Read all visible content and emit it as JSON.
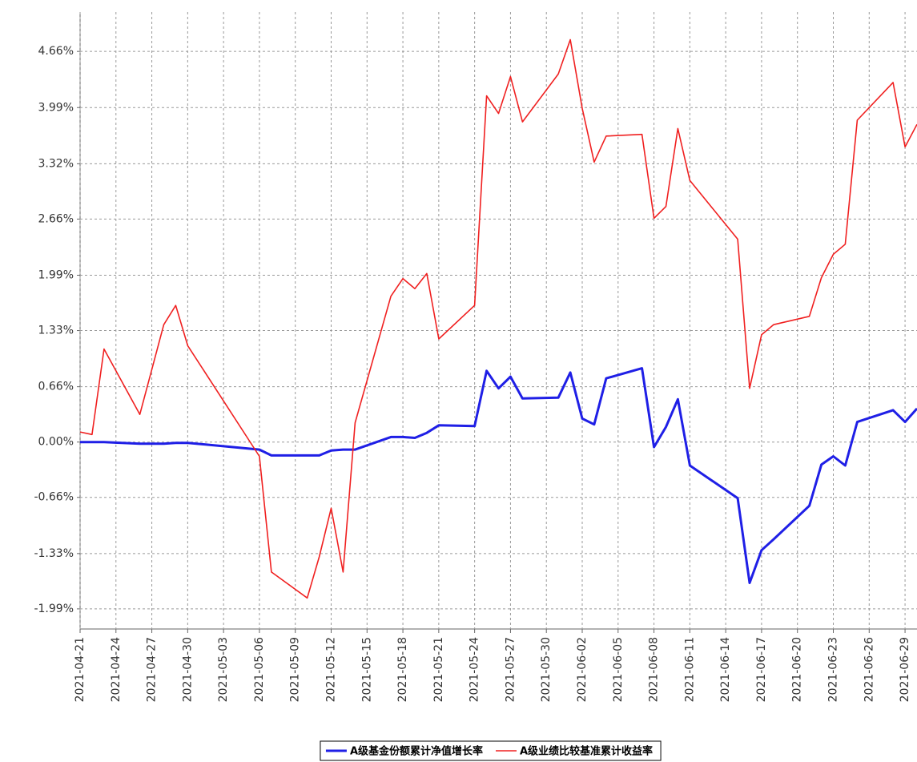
{
  "chart_data": {
    "type": "line",
    "x": [
      "2021-04-21",
      "2021-04-22",
      "2021-04-23",
      "2021-04-26",
      "2021-04-28",
      "2021-04-29",
      "2021-04-30",
      "2021-05-06",
      "2021-05-07",
      "2021-05-10",
      "2021-05-11",
      "2021-05-12",
      "2021-05-13",
      "2021-05-14",
      "2021-05-17",
      "2021-05-18",
      "2021-05-19",
      "2021-05-20",
      "2021-05-21",
      "2021-05-24",
      "2021-05-25",
      "2021-05-26",
      "2021-05-27",
      "2021-05-28",
      "2021-05-31",
      "2021-06-01",
      "2021-06-02",
      "2021-06-03",
      "2021-06-04",
      "2021-06-07",
      "2021-06-08",
      "2021-06-09",
      "2021-06-10",
      "2021-06-11",
      "2021-06-15",
      "2021-06-16",
      "2021-06-17",
      "2021-06-18",
      "2021-06-21",
      "2021-06-22",
      "2021-06-23",
      "2021-06-24",
      "2021-06-25",
      "2021-06-28",
      "2021-06-29",
      "2021-06-30"
    ],
    "series": [
      {
        "name": "A级基金份额累计净值增长率",
        "color": "#1f1fe6",
        "values": [
          0.0,
          0.0,
          0.0,
          -0.02,
          -0.02,
          -0.01,
          -0.01,
          -0.09,
          -0.16,
          -0.16,
          -0.16,
          -0.1,
          -0.09,
          -0.09,
          0.06,
          0.06,
          0.05,
          0.11,
          0.2,
          0.19,
          0.85,
          0.64,
          0.78,
          0.52,
          0.53,
          0.83,
          0.28,
          0.21,
          0.76,
          0.88,
          -0.06,
          0.18,
          0.51,
          -0.28,
          -0.67,
          -1.68,
          -1.29,
          -1.16,
          -0.76,
          -0.27,
          -0.17,
          -0.28,
          0.24,
          0.38,
          0.24,
          0.4
        ]
      },
      {
        "name": "A级业绩比较基准累计收益率",
        "color": "#f02020",
        "values": [
          0.12,
          0.09,
          1.11,
          0.33,
          1.4,
          1.63,
          1.15,
          -0.17,
          -1.55,
          -1.86,
          -1.37,
          -0.79,
          -1.55,
          0.23,
          1.74,
          1.95,
          1.83,
          2.01,
          1.23,
          1.63,
          4.13,
          3.92,
          4.36,
          3.82,
          4.39,
          4.8,
          3.98,
          3.34,
          3.65,
          3.67,
          2.67,
          2.81,
          3.74,
          3.12,
          2.42,
          0.64,
          1.28,
          1.4,
          1.5,
          1.96,
          2.24,
          2.36,
          3.84,
          4.29,
          3.52,
          3.79
        ]
      }
    ],
    "xlim": [
      "2021-04-21",
      "2021-06-30"
    ],
    "xticks": [
      "2021-04-21",
      "2021-04-24",
      "2021-04-27",
      "2021-04-30",
      "2021-05-03",
      "2021-05-06",
      "2021-05-09",
      "2021-05-12",
      "2021-05-15",
      "2021-05-18",
      "2021-05-21",
      "2021-05-24",
      "2021-05-27",
      "2021-05-30",
      "2021-06-02",
      "2021-06-05",
      "2021-06-08",
      "2021-06-11",
      "2021-06-14",
      "2021-06-17",
      "2021-06-20",
      "2021-06-23",
      "2021-06-26",
      "2021-06-29"
    ],
    "ylim": [
      -2.23,
      5.13
    ],
    "yticks": [
      {
        "value": 4.66,
        "label": "4.66%"
      },
      {
        "value": 3.99,
        "label": "3.99%"
      },
      {
        "value": 3.32,
        "label": "3.32%"
      },
      {
        "value": 2.66,
        "label": "2.66%"
      },
      {
        "value": 1.99,
        "label": "1.99%"
      },
      {
        "value": 1.33,
        "label": "1.33%"
      },
      {
        "value": 0.66,
        "label": "0.66%"
      },
      {
        "value": 0.0,
        "label": "0.00%"
      },
      {
        "value": -0.66,
        "label": "-0.66%"
      },
      {
        "value": -1.33,
        "label": "-1.33%"
      },
      {
        "value": -1.99,
        "label": "-1.99%"
      }
    ],
    "grid": true,
    "legend": "bottom"
  }
}
